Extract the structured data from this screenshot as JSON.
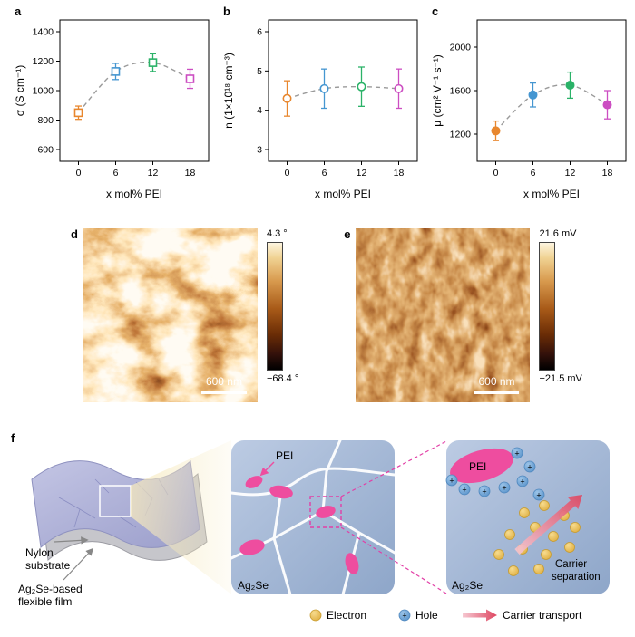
{
  "chart_data": [
    {
      "type": "scatter",
      "panel_label": "a",
      "marker": "square-open",
      "x": [
        0,
        6,
        12,
        18
      ],
      "y": [
        850,
        1130,
        1190,
        1080
      ],
      "yerr": [
        45,
        55,
        60,
        65
      ],
      "point_colors": [
        "#e8872e",
        "#4596d1",
        "#2bb268",
        "#cc4ec2"
      ],
      "trend_line": "dashed-gray",
      "xlabel": "x mol% PEI",
      "ylabel": "σ (S cm⁻¹)",
      "xlim": [
        -3,
        21
      ],
      "ylim": [
        520,
        1480
      ],
      "xticks": [
        0,
        6,
        12,
        18
      ],
      "yticks": [
        600,
        800,
        1000,
        1200,
        1400
      ],
      "grid": false,
      "legend_position": "none"
    },
    {
      "type": "scatter",
      "panel_label": "b",
      "marker": "circle-open",
      "x": [
        0,
        6,
        12,
        18
      ],
      "y": [
        4.3,
        4.55,
        4.6,
        4.55
      ],
      "yerr": [
        0.45,
        0.5,
        0.5,
        0.5
      ],
      "point_colors": [
        "#e8872e",
        "#4596d1",
        "#2bb268",
        "#cc4ec2"
      ],
      "trend_line": "dashed-gray",
      "xlabel": "x mol% PEI",
      "ylabel": "n (1×10¹⁸ cm⁻³)",
      "xlim": [
        -3,
        21
      ],
      "ylim": [
        2.7,
        6.3
      ],
      "xticks": [
        0,
        6,
        12,
        18
      ],
      "yticks": [
        3,
        4,
        5,
        6
      ],
      "grid": false,
      "legend_position": "none"
    },
    {
      "type": "scatter",
      "panel_label": "c",
      "marker": "circle-filled",
      "x": [
        0,
        6,
        12,
        18
      ],
      "y": [
        1230,
        1560,
        1650,
        1470
      ],
      "yerr": [
        90,
        110,
        120,
        130
      ],
      "point_colors": [
        "#e8872e",
        "#4596d1",
        "#2bb268",
        "#cc4ec2"
      ],
      "trend_line": "dashed-gray",
      "xlabel": "x mol% PEI",
      "ylabel": "μ (cm² V⁻¹ s⁻¹)",
      "xlim": [
        -3,
        21
      ],
      "ylim": [
        950,
        2250
      ],
      "xticks": [
        0,
        6,
        12,
        18
      ],
      "yticks": [
        1200,
        1600,
        2000
      ],
      "grid": false,
      "legend_position": "none"
    }
  ],
  "afm_panels": {
    "d": {
      "label": "d",
      "max_label": "4.3 °",
      "min_label": "−68.4 °",
      "scalebar_label": "600 nm"
    },
    "e": {
      "label": "e",
      "max_label": "21.6 mV",
      "min_label": "−21.5 mV",
      "scalebar_label": "600 nm"
    }
  },
  "schematic": {
    "label": "f",
    "nylon_label_1": "Nylon",
    "nylon_label_2": "substrate",
    "film_label_1": "Ag₂Se-based",
    "film_label_2": "flexible film",
    "pei_mid": "PEI",
    "ag2se_mid": "Ag₂Se",
    "pei_zoom": "PEI",
    "ag2se_zoom": "Ag₂Se",
    "carrier_sep_1": "Carrier",
    "carrier_sep_2": "separation",
    "plus_sign": "+",
    "legend": {
      "electron": "Electron",
      "hole": "Hole",
      "transport": "Carrier transport"
    }
  },
  "colors": {
    "pei_pink": "#ee4d9f",
    "hole_blue": "#5b9bd5",
    "electron_gold": "#e9bd4e",
    "panel_blue": "#a9bdd9",
    "zoom_magenta": "#e23ea6",
    "trend_gray": "#9a9a9a"
  }
}
